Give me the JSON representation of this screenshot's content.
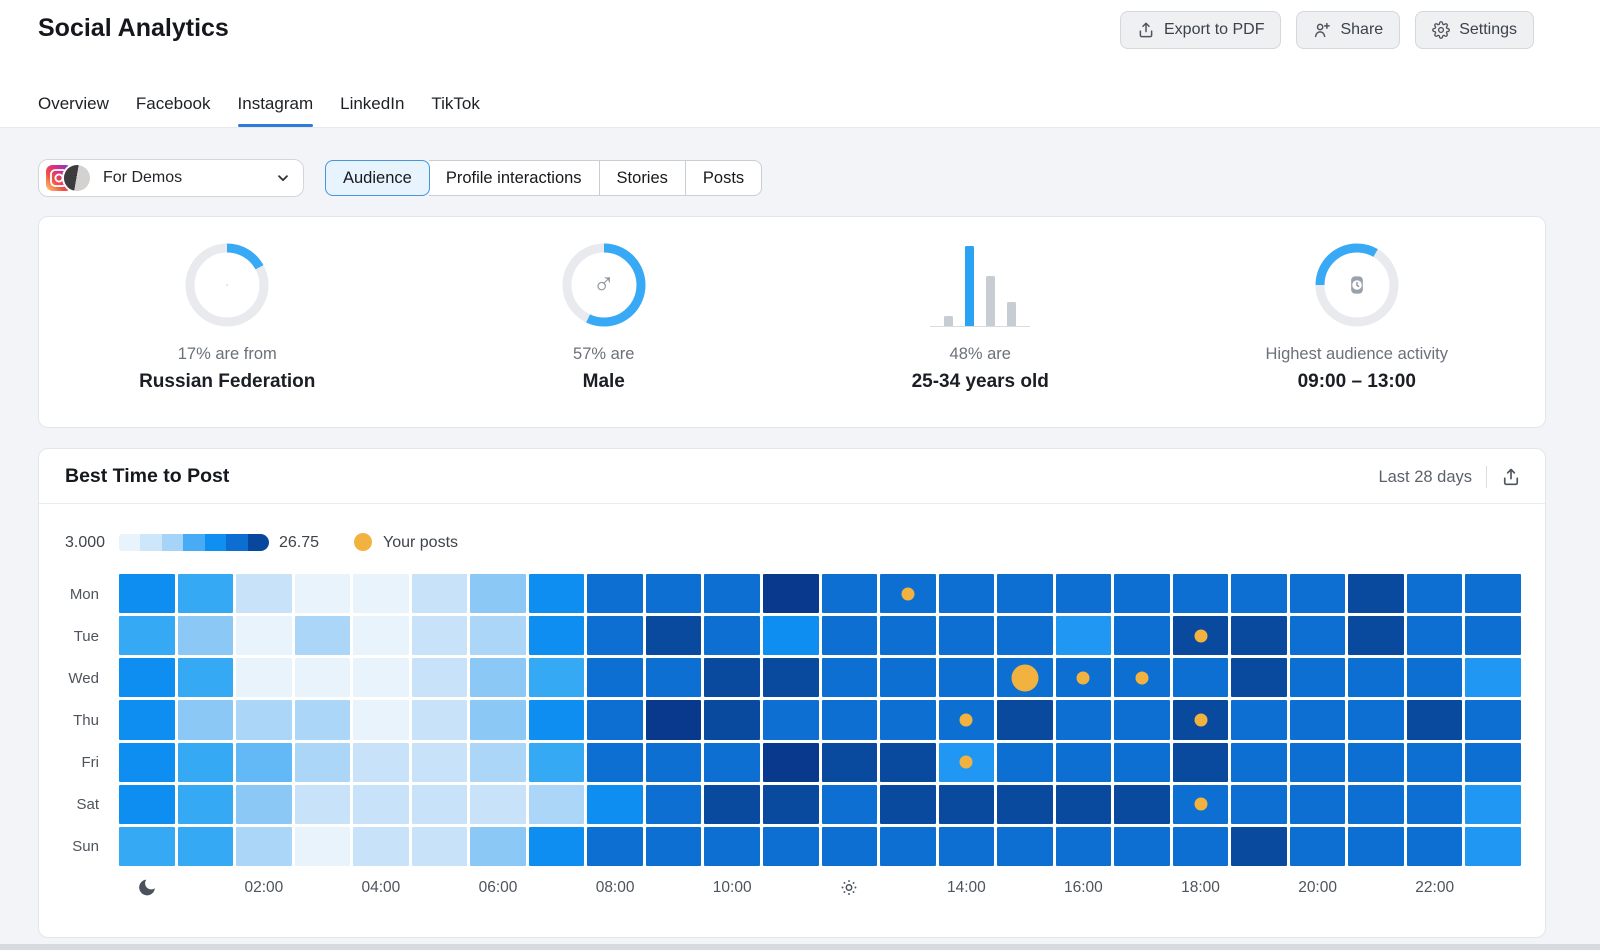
{
  "header": {
    "title": "Social Analytics",
    "buttons": [
      {
        "label": "Export to PDF",
        "icon": "export-icon"
      },
      {
        "label": "Share",
        "icon": "share-icon"
      },
      {
        "label": "Settings",
        "icon": "settings-icon"
      }
    ]
  },
  "tabs": {
    "items": [
      "Overview",
      "Facebook",
      "Instagram",
      "LinkedIn",
      "TikTok"
    ],
    "active": "Instagram"
  },
  "account": {
    "name": "For Demos",
    "network_icon": "instagram-icon",
    "avatar": "profile-avatar"
  },
  "segments": {
    "items": [
      "Audience",
      "Profile interactions",
      "Stories",
      "Posts"
    ],
    "active": "Audience"
  },
  "colors": {
    "accent_blue": "#38a9f5",
    "donut_track": "#e8eaee",
    "bar_gray": "#c8ccd3",
    "bar_blue": "#2ba3f4",
    "posts_yellow": "#f2b240"
  },
  "stats": [
    {
      "kind": "donut",
      "percent": 17,
      "center_icon": "russia-flag-icon",
      "line1": "17% are from",
      "line2": "Russian Federation"
    },
    {
      "kind": "donut",
      "percent": 57,
      "center_icon": "male-icon",
      "line1": "57% are",
      "line2": "Male"
    },
    {
      "kind": "bars",
      "values": [
        13,
        100,
        63,
        30
      ],
      "highlight": 1,
      "line1": "48% are",
      "line2": "25-34 years old"
    },
    {
      "kind": "clock",
      "start_deg": 270,
      "sweep_deg": 120,
      "center_icon": "watch-icon",
      "line1": "Highest audience activity",
      "line2": "09:00 – 13:00"
    }
  ],
  "best_time": {
    "title": "Best Time to Post",
    "range_label": "Last 28 days",
    "legend": {
      "min": "3.000",
      "max": "26.75",
      "your_posts_label": "Your posts",
      "scale": [
        "#e9f3fc",
        "#cde6fa",
        "#a5d4f8",
        "#47acf5",
        "#0f8ff2",
        "#0b6ed0",
        "#09479c"
      ]
    },
    "chart_data": {
      "type": "heatmap",
      "title": "Best Time to Post",
      "rows": [
        "Mon",
        "Tue",
        "Wed",
        "Thu",
        "Fri",
        "Sat",
        "Sun"
      ],
      "hours": [
        0,
        1,
        2,
        3,
        4,
        5,
        6,
        7,
        8,
        9,
        10,
        11,
        12,
        13,
        14,
        15,
        16,
        17,
        18,
        19,
        20,
        21,
        22,
        23
      ],
      "values_range": [
        3.0,
        26.75
      ],
      "palette": {
        "a": "#e9f3fc",
        "b": "#c8e2f9",
        "c": "#abd6f8",
        "d": "#8cc8f6",
        "e": "#63b8f6",
        "f": "#35a9f4",
        "g": "#0e8ef1",
        "h": "#1f97f3",
        "D": "#0c6fd1",
        "N": "#094a9e",
        "X": "#08398c"
      },
      "cells": [
        [
          "g",
          "f",
          "b",
          "a",
          "a",
          "b",
          "d",
          "g",
          "D",
          "D",
          "D",
          "X",
          "D",
          "D",
          "D",
          "D",
          "D",
          "D",
          "D",
          "D",
          "D",
          "N",
          "D",
          "D"
        ],
        [
          "f",
          "d",
          "a",
          "c",
          "a",
          "b",
          "c",
          "g",
          "D",
          "N",
          "D",
          "g",
          "D",
          "D",
          "D",
          "D",
          "h",
          "D",
          "N",
          "N",
          "D",
          "N",
          "D",
          "D"
        ],
        [
          "g",
          "f",
          "a",
          "a",
          "a",
          "b",
          "d",
          "f",
          "D",
          "D",
          "N",
          "N",
          "D",
          "D",
          "D",
          "D",
          "D",
          "D",
          "D",
          "N",
          "D",
          "D",
          "D",
          "h"
        ],
        [
          "g",
          "d",
          "c",
          "c",
          "a",
          "b",
          "d",
          "g",
          "D",
          "X",
          "N",
          "D",
          "D",
          "D",
          "D",
          "N",
          "D",
          "D",
          "N",
          "D",
          "D",
          "D",
          "N",
          "D"
        ],
        [
          "g",
          "f",
          "e",
          "c",
          "b",
          "b",
          "c",
          "f",
          "D",
          "D",
          "D",
          "X",
          "N",
          "N",
          "h",
          "D",
          "D",
          "D",
          "N",
          "D",
          "D",
          "D",
          "D",
          "D"
        ],
        [
          "g",
          "f",
          "d",
          "b",
          "b",
          "b",
          "b",
          "c",
          "g",
          "D",
          "N",
          "N",
          "D",
          "N",
          "N",
          "N",
          "N",
          "N",
          "D",
          "D",
          "D",
          "D",
          "D",
          "h"
        ],
        [
          "f",
          "f",
          "c",
          "a",
          "b",
          "b",
          "d",
          "g",
          "D",
          "D",
          "D",
          "D",
          "D",
          "D",
          "D",
          "D",
          "D",
          "D",
          "D",
          "N",
          "D",
          "D",
          "D",
          "h"
        ]
      ],
      "posts": [
        {
          "day": "Mon",
          "hour": 13,
          "size": "small"
        },
        {
          "day": "Tue",
          "hour": 18,
          "size": "small"
        },
        {
          "day": "Wed",
          "hour": 15,
          "size": "large"
        },
        {
          "day": "Wed",
          "hour": 16,
          "size": "small"
        },
        {
          "day": "Wed",
          "hour": 17,
          "size": "small"
        },
        {
          "day": "Thu",
          "hour": 14,
          "size": "small"
        },
        {
          "day": "Thu",
          "hour": 18,
          "size": "small"
        },
        {
          "day": "Fri",
          "hour": 14,
          "size": "small"
        },
        {
          "day": "Sat",
          "hour": 18,
          "size": "small"
        }
      ],
      "ticks": [
        {
          "hour": 0,
          "icon": "moon-icon"
        },
        {
          "hour": 2,
          "label": "02:00"
        },
        {
          "hour": 4,
          "label": "04:00"
        },
        {
          "hour": 6,
          "label": "06:00"
        },
        {
          "hour": 8,
          "label": "08:00"
        },
        {
          "hour": 10,
          "label": "10:00"
        },
        {
          "hour": 12,
          "icon": "sun-icon"
        },
        {
          "hour": 14,
          "label": "14:00"
        },
        {
          "hour": 16,
          "label": "16:00"
        },
        {
          "hour": 18,
          "label": "18:00"
        },
        {
          "hour": 20,
          "label": "20:00"
        },
        {
          "hour": 22,
          "label": "22:00"
        }
      ]
    }
  }
}
